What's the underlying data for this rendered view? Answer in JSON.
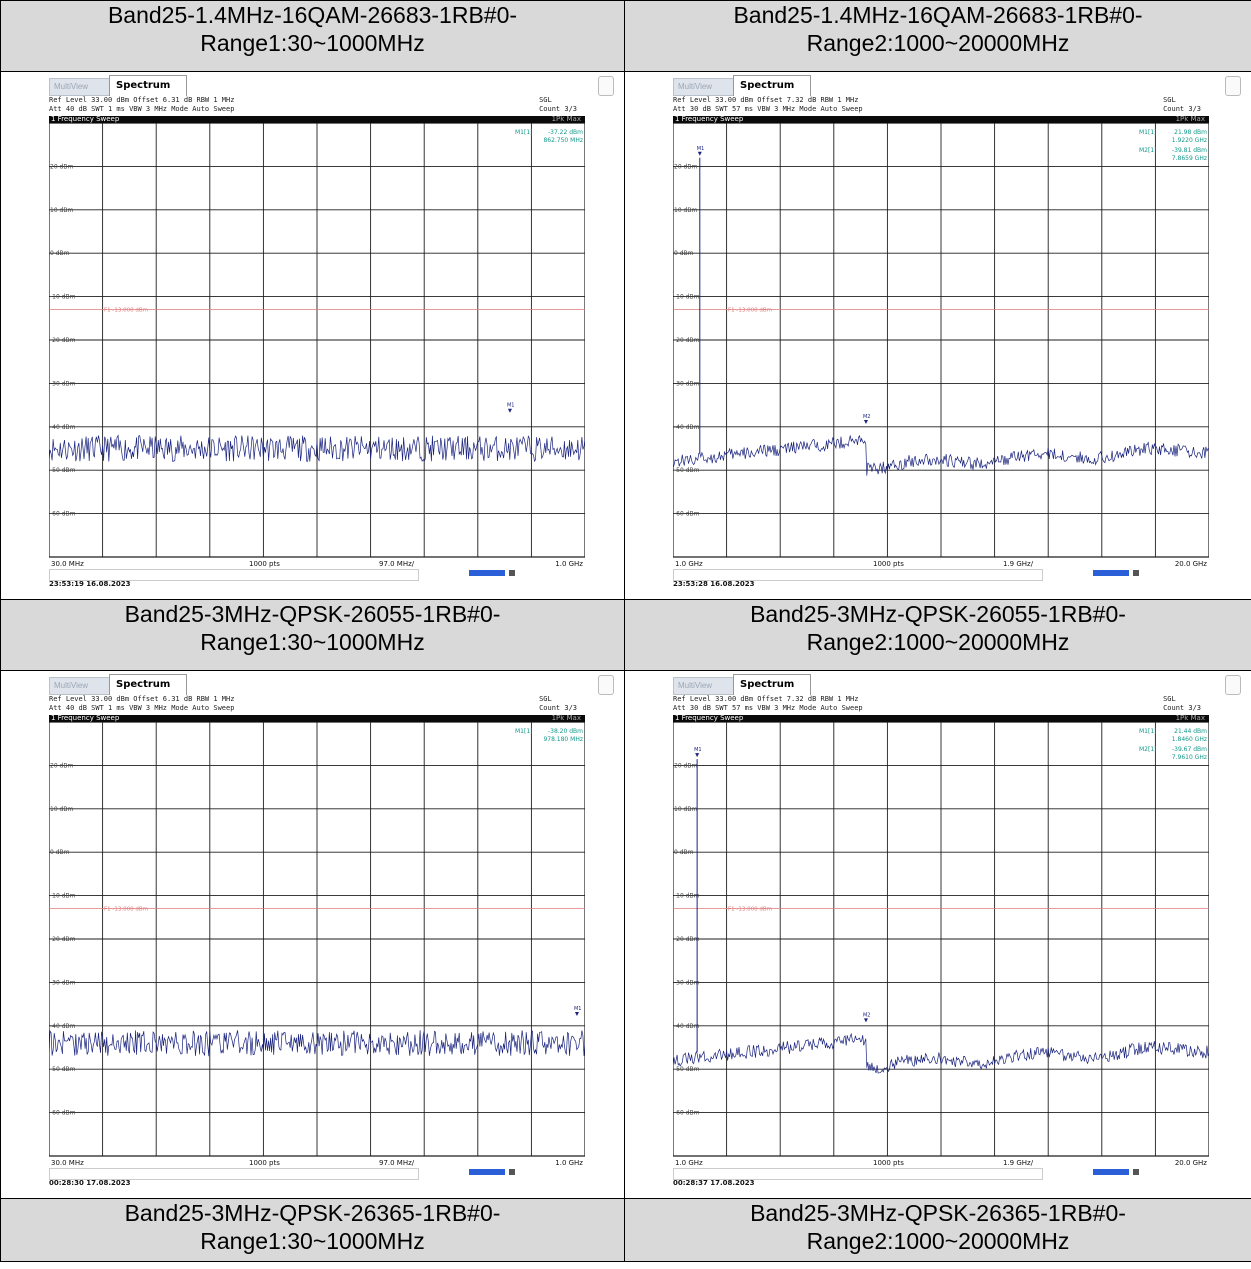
{
  "headers": {
    "r1c1": [
      "Band25-1.4MHz-16QAM-26683-1RB#0-",
      "Range1:30~1000MHz"
    ],
    "r1c2": [
      "Band25-1.4MHz-16QAM-26683-1RB#0-",
      "Range2:1000~20000MHz"
    ],
    "r2c1": [
      "Band25-3MHz-QPSK-26055-1RB#0-",
      "Range1:30~1000MHz"
    ],
    "r2c2": [
      "Band25-3MHz-QPSK-26055-1RB#0-",
      "Range2:1000~20000MHz"
    ],
    "r3c1": [
      "Band25-3MHz-QPSK-26365-1RB#0-",
      "Range1:30~1000MHz"
    ],
    "r3c2": [
      "Band25-3MHz-QPSK-26365-1RB#0-",
      "Range2:1000~20000MHz"
    ]
  },
  "analyzer_ui": {
    "tab_multiview": "MultiView",
    "tab_spectrum": "Spectrum",
    "sweep_title": "1 Frequency Sweep",
    "sweep_mode": "1Pk Max",
    "sgl": "SGL",
    "count": "Count 3/3",
    "rbw": "RBW 1 MHz",
    "vbw": "VBW 3 MHz",
    "mode": "Mode Auto Sweep",
    "points": "1000 pts",
    "limit_line_label": "F1 -13.000 dBm",
    "colors": {
      "trace": "#1a237e",
      "limit": "#e07a7a",
      "marker_text": "#11988a",
      "grid": "#222222"
    }
  },
  "chart_data": [
    {
      "type": "line",
      "id": "r1c1",
      "ref_level": "Ref Level 33.00 dBm",
      "offset": "Offset 6.31 dB",
      "att": "Att 40 dB",
      "swt": "SWT 1 ms",
      "x_start_label": "30.0 MHz",
      "x_step_label": "97.0 MHz/",
      "x_stop_label": "1.0 GHz",
      "timestamp": "23:53:19 16.08.2023",
      "ylim": [
        -70,
        30
      ],
      "y_ticks": [
        "20 dBm",
        "10 dBm",
        "0 dBm",
        "-10 dBm",
        "-20 dBm",
        "-30 dBm",
        "-40 dBm",
        "-50 dBm",
        "-60 dBm"
      ],
      "limit_dbm": -13,
      "noise_floor_dbm": -45,
      "noise_amplitude": 3,
      "markers_text": [
        [
          "M1[1]",
          "-37.22 dBm",
          "862.750 MHz"
        ]
      ],
      "marker_points": [
        {
          "name": "M1",
          "x_frac": 0.86,
          "y_dbm": -37.22
        }
      ],
      "shape": "flat"
    },
    {
      "type": "line",
      "id": "r1c2",
      "ref_level": "Ref Level 33.00 dBm",
      "offset": "Offset 7.32 dB",
      "att": "Att 30 dB",
      "swt": "SWT 57 ms",
      "x_start_label": "1.0 GHz",
      "x_step_label": "1.9 GHz/",
      "x_stop_label": "20.0 GHz",
      "timestamp": "23:53:28 16.08.2023",
      "ylim": [
        -70,
        30
      ],
      "y_ticks": [
        "20 dBm",
        "10 dBm",
        "0 dBm",
        "-10 dBm",
        "-20 dBm",
        "-30 dBm",
        "-40 dBm",
        "-50 dBm",
        "-60 dBm"
      ],
      "limit_dbm": -13,
      "noise_floor_dbm": -46,
      "noise_amplitude": 1.5,
      "markers_text": [
        [
          "M1[1]",
          "21.98 dBm",
          "1.9220 GHz"
        ],
        [
          "M2[1]",
          "-39.81 dBm",
          "7.8659 GHz"
        ]
      ],
      "marker_points": [
        {
          "name": "M1",
          "x_frac": 0.05,
          "y_dbm": 21.98
        },
        {
          "name": "M2",
          "x_frac": 0.36,
          "y_dbm": -39.81
        }
      ],
      "shape": "step"
    },
    {
      "type": "line",
      "id": "r2c1",
      "ref_level": "Ref Level 33.00 dBm",
      "offset": "Offset 6.31 dB",
      "att": "Att 40 dB",
      "swt": "SWT 1 ms",
      "x_start_label": "30.0 MHz",
      "x_step_label": "97.0 MHz/",
      "x_stop_label": "1.0 GHz",
      "timestamp": "00:28:30 17.08.2023",
      "ylim": [
        -70,
        30
      ],
      "y_ticks": [
        "20 dBm",
        "10 dBm",
        "0 dBm",
        "-10 dBm",
        "-20 dBm",
        "-30 dBm",
        "-40 dBm",
        "-50 dBm",
        "-60 dBm"
      ],
      "limit_dbm": -13,
      "noise_floor_dbm": -44,
      "noise_amplitude": 3,
      "markers_text": [
        [
          "M1[1]",
          "-38.20 dBm",
          "978.180 MHz"
        ]
      ],
      "marker_points": [
        {
          "name": "M1",
          "x_frac": 0.985,
          "y_dbm": -38.2
        }
      ],
      "shape": "flat"
    },
    {
      "type": "line",
      "id": "r2c2",
      "ref_level": "Ref Level 33.00 dBm",
      "offset": "Offset 7.32 dB",
      "att": "Att 30 dB",
      "swt": "SWT 57 ms",
      "x_start_label": "1.0 GHz",
      "x_step_label": "1.9 GHz/",
      "x_stop_label": "20.0 GHz",
      "timestamp": "00:28:37 17.08.2023",
      "ylim": [
        -70,
        30
      ],
      "y_ticks": [
        "20 dBm",
        "10 dBm",
        "0 dBm",
        "-10 dBm",
        "-20 dBm",
        "-30 dBm",
        "-40 dBm",
        "-50 dBm",
        "-60 dBm"
      ],
      "limit_dbm": -13,
      "noise_floor_dbm": -45,
      "noise_amplitude": 1.5,
      "markers_text": [
        [
          "M1[1]",
          "21.44 dBm",
          "1.8460 GHz"
        ],
        [
          "M2[1]",
          "-39.67 dBm",
          "7.9610 GHz"
        ]
      ],
      "marker_points": [
        {
          "name": "M1",
          "x_frac": 0.045,
          "y_dbm": 21.44
        },
        {
          "name": "M2",
          "x_frac": 0.36,
          "y_dbm": -39.67
        }
      ],
      "shape": "step"
    }
  ]
}
